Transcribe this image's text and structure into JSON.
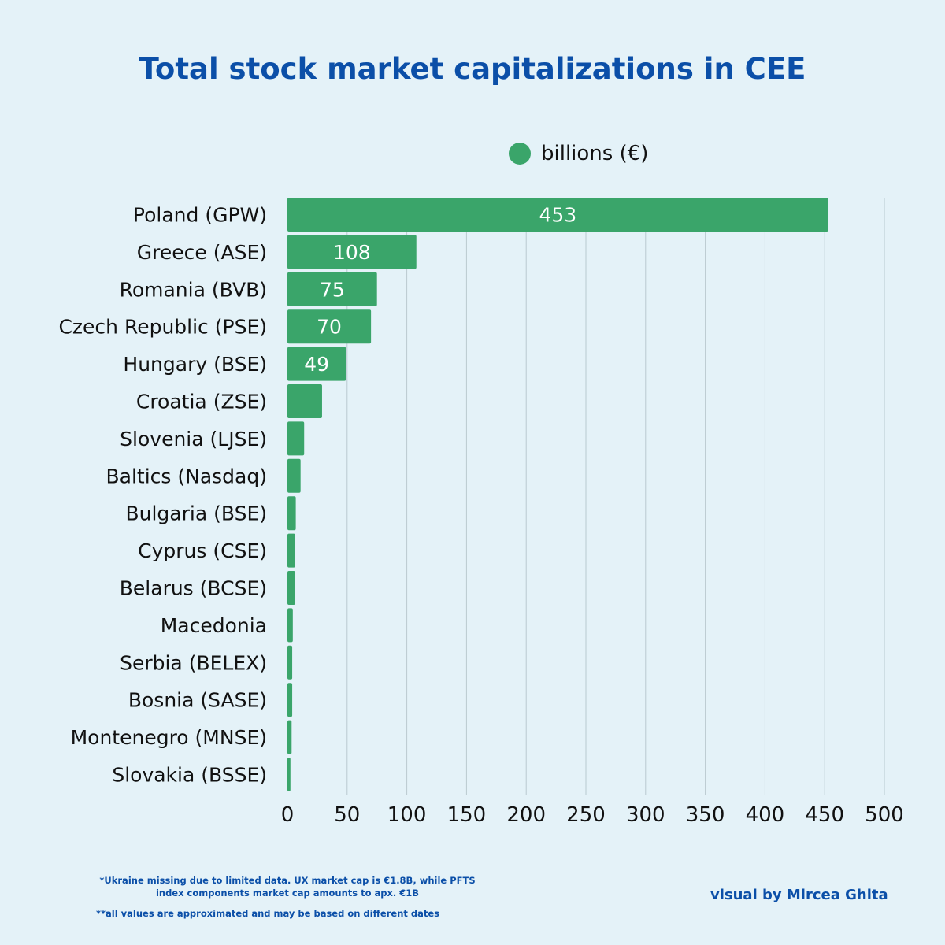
{
  "title": "Total stock market capitalizations in CEE",
  "legend": {
    "label": "billions (€)",
    "color": "#3aa56a"
  },
  "notes": {
    "ukraine": "*Ukraine missing due to limited data. UX market cap is €1.8B, while PFTS index components market cap amounts to apx. €1B",
    "approx": "**all values are approximated and may be based on different dates"
  },
  "credit": "visual by Mircea Ghita",
  "chart_data": {
    "type": "bar",
    "orientation": "horizontal",
    "categories": [
      "Poland (GPW)",
      "Greece (ASE)",
      "Romania (BVB)",
      "Czech Republic (PSE)",
      "Hungary (BSE)",
      "Croatia (ZSE)",
      "Slovenia (LJSE)",
      "Baltics (Nasdaq)",
      "Bulgaria (BSE)",
      "Cyprus (CSE)",
      "Belarus (BCSE)",
      "Macedonia",
      "Serbia (BELEX)",
      "Bosnia (SASE)",
      "Montenegro (MNSE)",
      "Slovakia (BSSE)"
    ],
    "series": [
      {
        "name": "billions (€)",
        "values": [
          453,
          108,
          75,
          70,
          49,
          29,
          14,
          11,
          7,
          6.5,
          6.5,
          4.5,
          4,
          4,
          3.5,
          2.5
        ]
      }
    ],
    "data_labels": [
      "453",
      "108",
      "75",
      "70",
      "49",
      "",
      "",
      "",
      "",
      "",
      "",
      "",
      "",
      "",
      "",
      ""
    ],
    "xlim": [
      0,
      500
    ],
    "xticks": [
      0,
      50,
      100,
      150,
      200,
      250,
      300,
      350,
      400,
      450,
      500
    ],
    "grid": "vertical",
    "legend_position": "top-right",
    "bar_color": "#3aa56a"
  }
}
